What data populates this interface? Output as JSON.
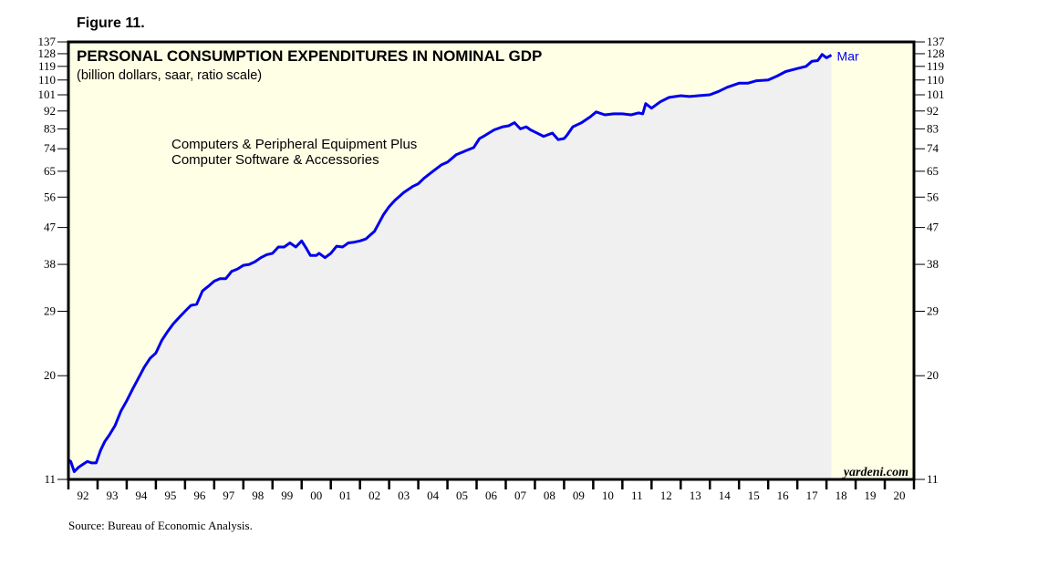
{
  "figure_label": "Figure 11.",
  "source": "Source: Bureau of Economic Analysis.",
  "watermark": "yardeni.com",
  "colors": {
    "background_plot": "#ffffe6",
    "area_fill": "#f0f0f0",
    "line": "#0000ee",
    "axis": "#000000"
  },
  "chart_data": {
    "type": "area",
    "title": "PERSONAL CONSUMPTION EXPENDITURES IN NOMINAL GDP",
    "subtitle": "(billion dollars, saar, ratio scale)",
    "annotation": [
      "Computers & Peripheral Equipment Plus",
      "Computer Software & Accessories"
    ],
    "end_label": "Mar",
    "yscale": "log",
    "ylim": [
      11,
      137
    ],
    "yticks": [
      11,
      20,
      29,
      38,
      47,
      56,
      65,
      74,
      83,
      92,
      101,
      110,
      119,
      128,
      137
    ],
    "xlim": [
      1992,
      2021
    ],
    "xtick_labels": [
      "92",
      "93",
      "94",
      "95",
      "96",
      "97",
      "98",
      "99",
      "00",
      "01",
      "02",
      "03",
      "04",
      "05",
      "06",
      "07",
      "08",
      "09",
      "10",
      "11",
      "12",
      "13",
      "14",
      "15",
      "16",
      "17",
      "18",
      "19",
      "20"
    ],
    "shading_end": 2018.25,
    "grid": false,
    "legend": "none",
    "series": [
      {
        "name": "Computers & Peripheral Equipment Plus Computer Software & Accessories",
        "x": [
          1992.0,
          1992.08,
          1992.2,
          1992.35,
          1992.5,
          1992.65,
          1992.8,
          1992.95,
          1993.1,
          1993.25,
          1993.4,
          1993.6,
          1993.8,
          1994.0,
          1994.2,
          1994.4,
          1994.6,
          1994.8,
          1995.0,
          1995.2,
          1995.4,
          1995.6,
          1995.8,
          1996.0,
          1996.2,
          1996.4,
          1996.6,
          1996.8,
          1997.0,
          1997.2,
          1997.4,
          1997.6,
          1997.8,
          1998.0,
          1998.2,
          1998.4,
          1998.6,
          1998.8,
          1999.0,
          1999.2,
          1999.4,
          1999.6,
          1999.8,
          2000.0,
          2000.15,
          2000.3,
          2000.5,
          2000.6,
          2000.8,
          2001.0,
          2001.2,
          2001.4,
          2001.5,
          2001.6,
          2001.8,
          2002.0,
          2002.2,
          2002.5,
          2002.8,
          2003.0,
          2003.2,
          2003.5,
          2003.8,
          2004.0,
          2004.2,
          2004.5,
          2004.8,
          2005.0,
          2005.3,
          2005.6,
          2005.9,
          2006.1,
          2006.3,
          2006.6,
          2006.9,
          2007.1,
          2007.3,
          2007.5,
          2007.7,
          2007.85,
          2008.0,
          2008.3,
          2008.6,
          2008.8,
          2009.0,
          2009.1,
          2009.3,
          2009.6,
          2009.9,
          2010.1,
          2010.4,
          2010.7,
          2011.0,
          2011.3,
          2011.55,
          2011.7,
          2011.8,
          2012.0,
          2012.3,
          2012.6,
          2013.0,
          2013.3,
          2013.6,
          2014.0,
          2014.3,
          2014.6,
          2015.0,
          2015.3,
          2015.6,
          2016.0,
          2016.3,
          2016.6,
          2017.0,
          2017.3,
          2017.5,
          2017.7,
          2017.85,
          2018.0,
          2018.17
        ],
        "values": [
          12.3,
          12.2,
          11.5,
          11.8,
          12.0,
          12.2,
          12.1,
          12.1,
          13.0,
          13.7,
          14.2,
          15.0,
          16.3,
          17.3,
          18.5,
          19.7,
          21.0,
          22.1,
          22.8,
          24.5,
          25.8,
          27.0,
          28.0,
          29.0,
          30.0,
          30.2,
          32.6,
          33.5,
          34.5,
          35.0,
          35.0,
          36.5,
          37.0,
          37.8,
          38.0,
          38.6,
          39.5,
          40.2,
          40.5,
          42.0,
          42.0,
          43.0,
          42.0,
          43.5,
          41.8,
          40.0,
          40.0,
          40.5,
          39.5,
          40.5,
          42.2,
          42.0,
          42.5,
          43.0,
          43.2,
          43.5,
          44.0,
          46.0,
          50.5,
          53.0,
          55.0,
          57.5,
          59.5,
          60.5,
          62.5,
          65.0,
          67.5,
          68.5,
          71.5,
          73.0,
          74.5,
          78.5,
          80.0,
          82.5,
          84.0,
          84.5,
          86.0,
          83.0,
          84.0,
          82.5,
          81.5,
          79.5,
          81.0,
          78.0,
          78.5,
          80.0,
          84.0,
          86.0,
          89.0,
          91.5,
          90.0,
          90.5,
          90.5,
          90.0,
          91.0,
          90.5,
          96.0,
          93.5,
          97.0,
          99.5,
          100.5,
          100.0,
          100.5,
          101.0,
          103.0,
          105.5,
          108.0,
          108.0,
          109.5,
          110.0,
          112.5,
          115.5,
          117.5,
          119.0,
          122.5,
          123.0,
          127.5,
          125.0,
          127.0
        ]
      }
    ]
  }
}
